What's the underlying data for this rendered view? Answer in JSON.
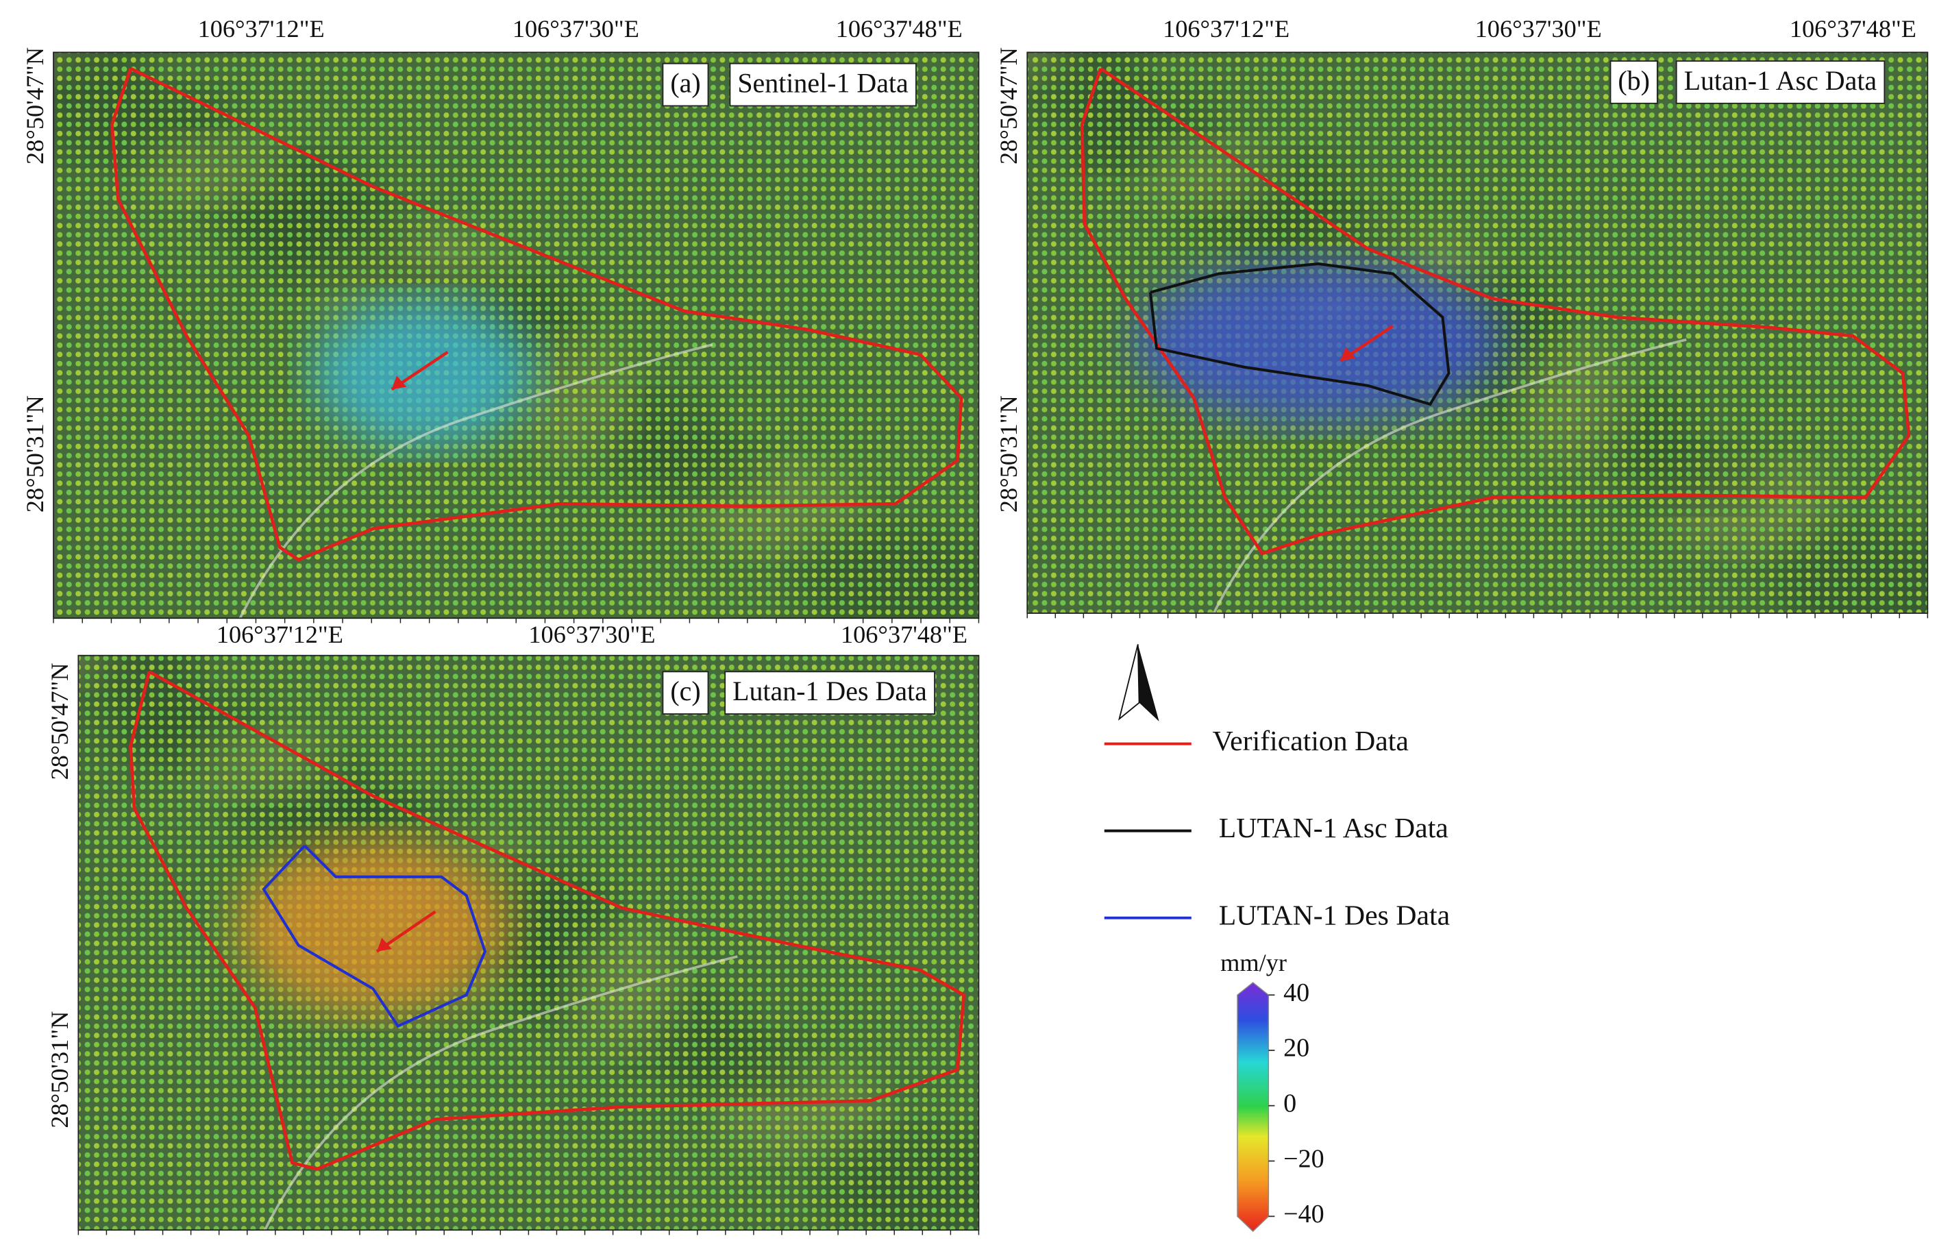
{
  "panels": [
    {
      "label": "(a)",
      "title": "Sentinel-1 Data",
      "lon_labels": [
        "106°37'12\"E",
        "106°37'30\"E",
        "106°37'48\"E"
      ],
      "lat_labels": [
        "28°50'47\"N",
        "28°50'31\"N"
      ]
    },
    {
      "label": "(b)",
      "title": "Lutan-1 Asc Data",
      "lon_labels": [
        "106°37'12\"E",
        "106°37'30\"E",
        "106°37'48\"E"
      ],
      "lat_labels": [
        "28°50'47\"N",
        "28°50'31\"N"
      ]
    },
    {
      "label": "(c)",
      "title": "Lutan-1 Des Data",
      "lon_labels": [
        "106°37'12\"E",
        "106°37'30\"E",
        "106°37'48\"E"
      ],
      "lat_labels": [
        "28°50'47\"N",
        "28°50'31\"N"
      ]
    }
  ],
  "legend": [
    {
      "label": "Verification Data",
      "color": "#e0201c"
    },
    {
      "label": "LUTAN-1 Asc Data",
      "color": "#111111"
    },
    {
      "label": "LUTAN-1 Des Data",
      "color": "#1f2fd0"
    }
  ],
  "colorbar": {
    "unit": "mm/yr",
    "lim": [
      -40,
      40
    ],
    "ticks": [
      40,
      20,
      0,
      {
        "value": -20,
        "label": "−20"
      },
      {
        "value": -40,
        "label": "−40"
      }
    ]
  }
}
